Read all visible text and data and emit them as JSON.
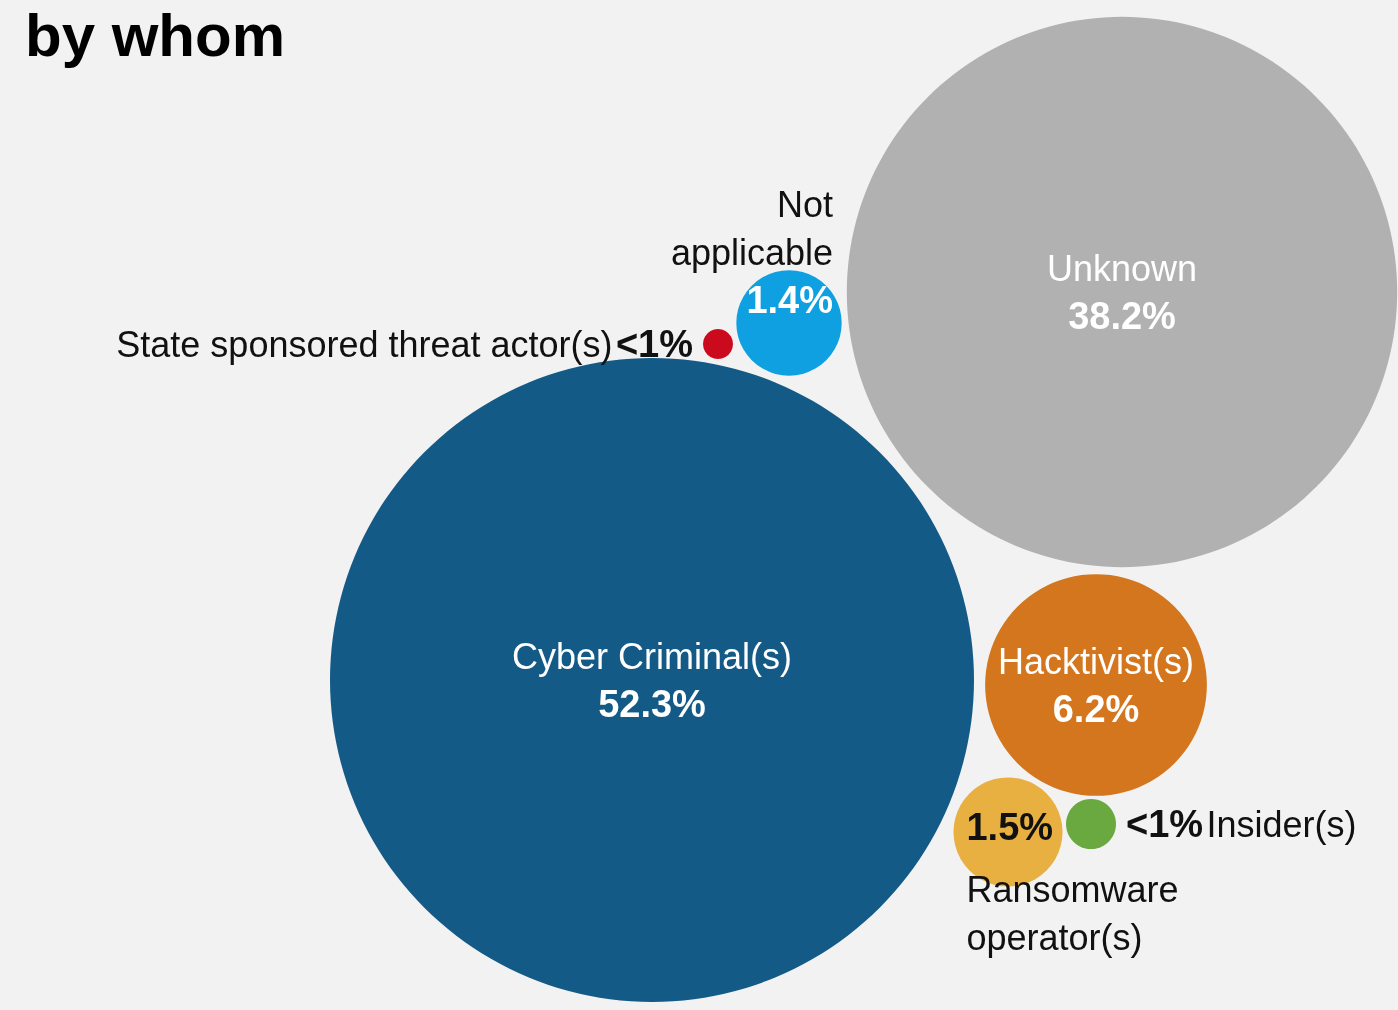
{
  "chart_data": {
    "type": "other",
    "title": "by whom",
    "categories": [
      "Cyber Criminal(s)",
      "Unknown",
      "Hacktivist(s)",
      "Ransomware operator(s)",
      "Not applicable",
      "State sponsored threat actor(s)",
      "Insider(s)"
    ],
    "values": [
      52.3,
      38.2,
      6.2,
      1.5,
      1.4,
      null,
      null
    ],
    "value_labels": [
      "52.3%",
      "38.2%",
      "6.2%",
      "1.5%",
      "1.4%",
      "<1%",
      "<1%"
    ],
    "colors": [
      "#145a87",
      "#b0b1b0",
      "#d4761e",
      "#e7b040",
      "#0ea0e0",
      "#cc0a1d",
      "#6aa840"
    ]
  }
}
